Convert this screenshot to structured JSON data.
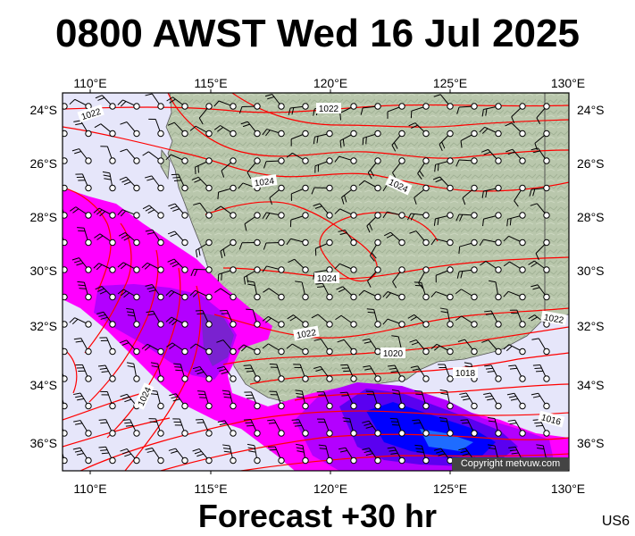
{
  "title": "0800 AWST Wed 16 Jul 2025",
  "footer": "Forecast +30 hr",
  "code": "US6",
  "copyright": "Copyright metvuw.com",
  "x_ticks": [
    "110°E",
    "115°E",
    "120°E",
    "125°E",
    "130°E"
  ],
  "y_ticks": [
    "24°S",
    "26°S",
    "28°S",
    "30°S",
    "32°S",
    "34°S",
    "36°S"
  ],
  "isobar_labels": [
    "1022",
    "1022",
    "1024",
    "1024",
    "1024",
    "1024",
    "1022",
    "1020",
    "1018",
    "1016",
    "1022"
  ],
  "colors": {
    "ocean": "#e6e6fa",
    "land": "#b9c7ac",
    "isobar": "#ff0000",
    "rain_light": "#ff00ff",
    "rain_moderate": "#b300ff",
    "rain_heavy": "#5a00f0",
    "rain_very_heavy": "#0000ff"
  }
}
